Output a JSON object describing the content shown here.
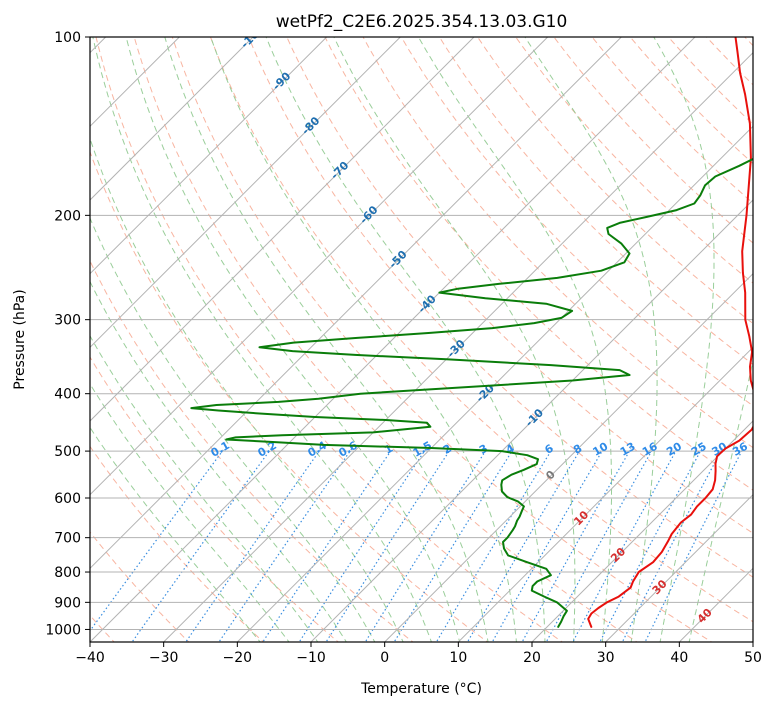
{
  "chart_data": {
    "type": "line",
    "subtype": "skew-t log-p diagram",
    "title": "wetPf2_C2E6.2025.354.13.03.G10",
    "xlabel": "Temperature (°C)",
    "ylabel": "Pressure (hPa)",
    "xlim": [
      -40,
      50
    ],
    "ylim": [
      1050,
      100
    ],
    "y_scale": "log",
    "grid": true,
    "x_ticks": [
      "−40",
      "−30",
      "−20",
      "−10",
      "0",
      "10",
      "20",
      "30",
      "40",
      "50"
    ],
    "y_ticks": [
      "100",
      "200",
      "300",
      "400",
      "500",
      "600",
      "700",
      "800",
      "900",
      "1000"
    ],
    "colors": {
      "temperature": "#e8100c",
      "dewpoint": "#0a7d0a",
      "isotherm_grid": "#b3b3b3",
      "dry_adiabat": "#f6a28a",
      "moist_adiabat": "#8fc98f",
      "mixing_ratio": "#3a8ee0",
      "isotherm_label": "#1f6fb0",
      "warm_isotherm_label": "#d62f2f",
      "zero_isotherm_label": "#7a7a7a",
      "mixing_ratio_label": "#2e8be8"
    },
    "isotherm_labels": [
      "-100",
      "-90",
      "-80",
      "-70",
      "-60",
      "-50",
      "-40",
      "-30",
      "-20",
      "-10",
      "0",
      "10",
      "20",
      "30",
      "40"
    ],
    "mixing_ratio_labels": [
      "0.1",
      "0.2",
      "0.4",
      "0.6",
      "1",
      "1.5",
      "2",
      "3",
      "4",
      "6",
      "8",
      "10",
      "13",
      "16",
      "20",
      "25",
      "30",
      "36"
    ],
    "series": [
      {
        "key": "temperature",
        "points": [
          [
            990,
            26.0
          ],
          [
            960,
            24.5
          ],
          [
            940,
            24.2
          ],
          [
            920,
            24.4
          ],
          [
            900,
            24.8
          ],
          [
            880,
            25.6
          ],
          [
            850,
            26.0
          ],
          [
            830,
            25.5
          ],
          [
            800,
            25.0
          ],
          [
            770,
            25.6
          ],
          [
            740,
            25.4
          ],
          [
            710,
            24.8
          ],
          [
            690,
            24.3
          ],
          [
            660,
            24.0
          ],
          [
            640,
            24.3
          ],
          [
            620,
            24.0
          ],
          [
            600,
            24.0
          ],
          [
            580,
            23.8
          ],
          [
            560,
            22.9
          ],
          [
            540,
            21.7
          ],
          [
            525,
            20.7
          ],
          [
            510,
            19.9
          ],
          [
            495,
            20.0
          ],
          [
            480,
            20.8
          ],
          [
            460,
            21.0
          ],
          [
            440,
            20.3
          ],
          [
            420,
            18.9
          ],
          [
            400,
            16.5
          ],
          [
            380,
            14.2
          ],
          [
            360,
            12.2
          ],
          [
            340,
            10.5
          ],
          [
            320,
            8.0
          ],
          [
            300,
            5.2
          ],
          [
            270,
            1.5
          ],
          [
            250,
            -1.5
          ],
          [
            230,
            -4.5
          ],
          [
            200,
            -8.8
          ],
          [
            180,
            -12.2
          ],
          [
            160,
            -16.0
          ],
          [
            140,
            -20.8
          ],
          [
            125,
            -25.4
          ],
          [
            115,
            -29.0
          ],
          [
            106,
            -32.2
          ],
          [
            100,
            -34.5
          ]
        ]
      },
      {
        "key": "dewpoint",
        "points": [
          [
            990,
            21.5
          ],
          [
            970,
            21.2
          ],
          [
            950,
            20.8
          ],
          [
            930,
            20.5
          ],
          [
            900,
            18.0
          ],
          [
            880,
            15.5
          ],
          [
            860,
            13.0
          ],
          [
            845,
            12.5
          ],
          [
            830,
            12.5
          ],
          [
            810,
            13.5
          ],
          [
            790,
            12.0
          ],
          [
            770,
            8.5
          ],
          [
            750,
            5.0
          ],
          [
            730,
            3.5
          ],
          [
            712,
            2.5
          ],
          [
            700,
            2.5
          ],
          [
            680,
            2.2
          ],
          [
            670,
            2.0
          ],
          [
            655,
            1.5
          ],
          [
            645,
            1.3
          ],
          [
            630,
            0.8
          ],
          [
            620,
            0.5
          ],
          [
            608,
            -1.0
          ],
          [
            598,
            -3.0
          ],
          [
            585,
            -4.5
          ],
          [
            570,
            -5.5
          ],
          [
            560,
            -6.0
          ],
          [
            548,
            -5.5
          ],
          [
            538,
            -4.5
          ],
          [
            526,
            -3.5
          ],
          [
            516,
            -4.0
          ],
          [
            508,
            -6.0
          ],
          [
            500,
            -10.0
          ],
          [
            494,
            -20.0
          ],
          [
            488,
            -35.0
          ],
          [
            482,
            -43.0
          ],
          [
            478,
            -49.0
          ],
          [
            474,
            -48.0
          ],
          [
            470,
            -42.0
          ],
          [
            465,
            -30.0
          ],
          [
            455,
            -23.0
          ],
          [
            448,
            -24.0
          ],
          [
            443,
            -30.0
          ],
          [
            438,
            -40.0
          ],
          [
            432,
            -48.0
          ],
          [
            427,
            -54.0
          ],
          [
            423,
            -58.0
          ],
          [
            418,
            -55.0
          ],
          [
            413,
            -47.0
          ],
          [
            408,
            -42.0
          ],
          [
            400,
            -37.0
          ],
          [
            380,
            -10.0
          ],
          [
            372,
            -3.0
          ],
          [
            365,
            -5.0
          ],
          [
            358,
            -15.0
          ],
          [
            350,
            -30.0
          ],
          [
            344,
            -43.0
          ],
          [
            339,
            -52.0
          ],
          [
            334,
            -57.0
          ],
          [
            328,
            -53.0
          ],
          [
            322,
            -45.0
          ],
          [
            316,
            -36.0
          ],
          [
            310,
            -28.0
          ],
          [
            304,
            -23.0
          ],
          [
            298,
            -20.0
          ],
          [
            290,
            -19.5
          ],
          [
            282,
            -24.0
          ],
          [
            276,
            -33.0
          ],
          [
            270,
            -40.0
          ],
          [
            266,
            -38.0
          ],
          [
            261,
            -33.0
          ],
          [
            255,
            -26.0
          ],
          [
            248,
            -21.0
          ],
          [
            240,
            -19.0
          ],
          [
            232,
            -19.5
          ],
          [
            223,
            -22.0
          ],
          [
            215,
            -25.0
          ],
          [
            210,
            -26.0
          ],
          [
            206,
            -25.0
          ],
          [
            201,
            -22.0
          ],
          [
            196,
            -19.0
          ],
          [
            191,
            -17.5
          ],
          [
            185,
            -17.8
          ],
          [
            178,
            -18.5
          ],
          [
            172,
            -18.3
          ],
          [
            165,
            -16.5
          ],
          [
            158,
            -15.0
          ],
          [
            150,
            -13.5
          ],
          [
            140,
            -11.0
          ],
          [
            132,
            -9.0
          ],
          [
            124,
            -7.0
          ],
          [
            117,
            -4.5
          ],
          [
            112,
            -3.0
          ],
          [
            108,
            -2.5
          ],
          [
            104,
            -2.3
          ],
          [
            100,
            -2.0
          ]
        ]
      }
    ]
  }
}
